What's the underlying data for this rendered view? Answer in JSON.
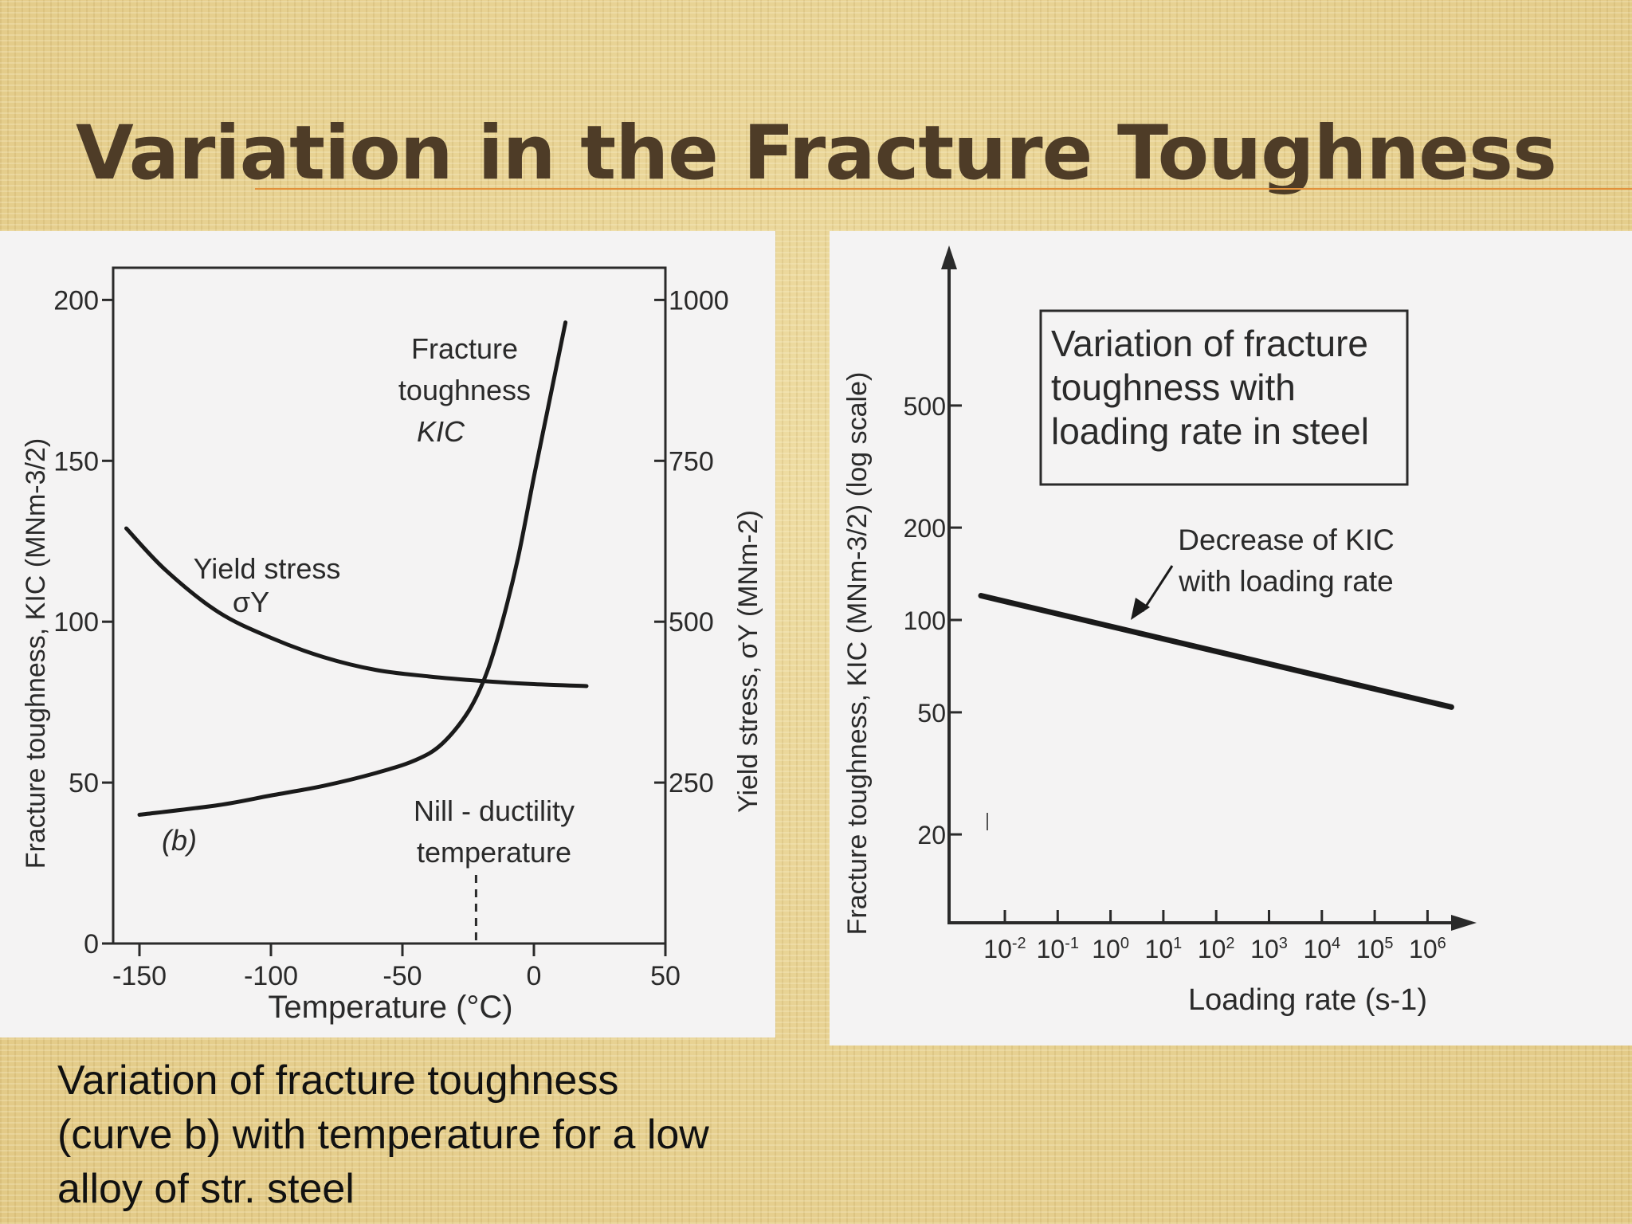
{
  "slide": {
    "title": "Variation in the Fracture Toughness",
    "caption_lines": [
      "Variation of fracture toughness",
      "(curve b) with temperature for a low",
      "alloy of str. steel"
    ]
  },
  "chart_data": [
    {
      "type": "line",
      "xlabel": "Temperature (°C)",
      "ylabel": "Fracture toughness, KIC (MNm-3/2)",
      "ylabel_right": "Yield stress, σY (MNm-2)",
      "xlim": [
        -160,
        50
      ],
      "ylim": [
        0,
        210
      ],
      "ylim_right": [
        0,
        1050
      ],
      "x_ticks": [
        "-150",
        "-100",
        "-50",
        "0",
        "50"
      ],
      "x_tick_values": [
        -150,
        -100,
        -50,
        0,
        50
      ],
      "y_ticks": [
        "0",
        "50",
        "100",
        "150",
        "200"
      ],
      "y_tick_values": [
        0,
        50,
        100,
        150,
        200
      ],
      "y_right_ticks": [
        "250",
        "500",
        "750",
        "1000"
      ],
      "y_right_tick_values": [
        250,
        500,
        750,
        1000
      ],
      "series": [
        {
          "name": "Fracture toughness KIC",
          "axis": "left",
          "x": [
            -150,
            -120,
            -100,
            -80,
            -60,
            -45,
            -35,
            -25,
            -18,
            -12,
            -6,
            0,
            5,
            10,
            12
          ],
          "y": [
            40,
            43,
            46,
            49,
            53,
            57,
            62,
            72,
            84,
            100,
            120,
            145,
            165,
            185,
            193
          ]
        },
        {
          "name": "Yield stress σY",
          "axis": "right",
          "x": [
            -155,
            -140,
            -120,
            -100,
            -80,
            -60,
            -40,
            -20,
            0,
            20
          ],
          "y": [
            645,
            580,
            515,
            475,
            445,
            425,
            415,
            408,
            403,
            400
          ]
        }
      ],
      "annotations": {
        "kic_label": [
          "Fracture",
          "toughness",
          "KIC"
        ],
        "yield_label": [
          "Yield stress",
          "σY"
        ],
        "ndt_label": [
          "Nill - ductility",
          "temperature"
        ],
        "ndt_x": -22,
        "curve_label": "(b)"
      }
    },
    {
      "type": "line",
      "xlabel": "Loading rate (s-1)",
      "ylabel": "Fracture toughness, KIC (MNm-3/2) (log scale)",
      "y_scale": "log",
      "x_scale": "log",
      "x_ticks": [
        "10-2",
        "10-1",
        "100",
        "101",
        "102",
        "103",
        "104",
        "105",
        "106"
      ],
      "x_tick_values": [
        0.01,
        0.1,
        1,
        10,
        100,
        1000,
        10000,
        100000,
        1000000
      ],
      "y_ticks": [
        "20",
        "50",
        "100",
        "200",
        "500"
      ],
      "y_tick_values": [
        20,
        50,
        100,
        200,
        500
      ],
      "series": [
        {
          "x": [
            0.01,
            1000000
          ],
          "y": [
            120,
            52
          ]
        }
      ],
      "legend_box": [
        "Variation of fracture",
        "toughness with",
        "loading rate in steel"
      ],
      "annotation": [
        "Decrease of KIC",
        "with loading rate"
      ]
    }
  ]
}
